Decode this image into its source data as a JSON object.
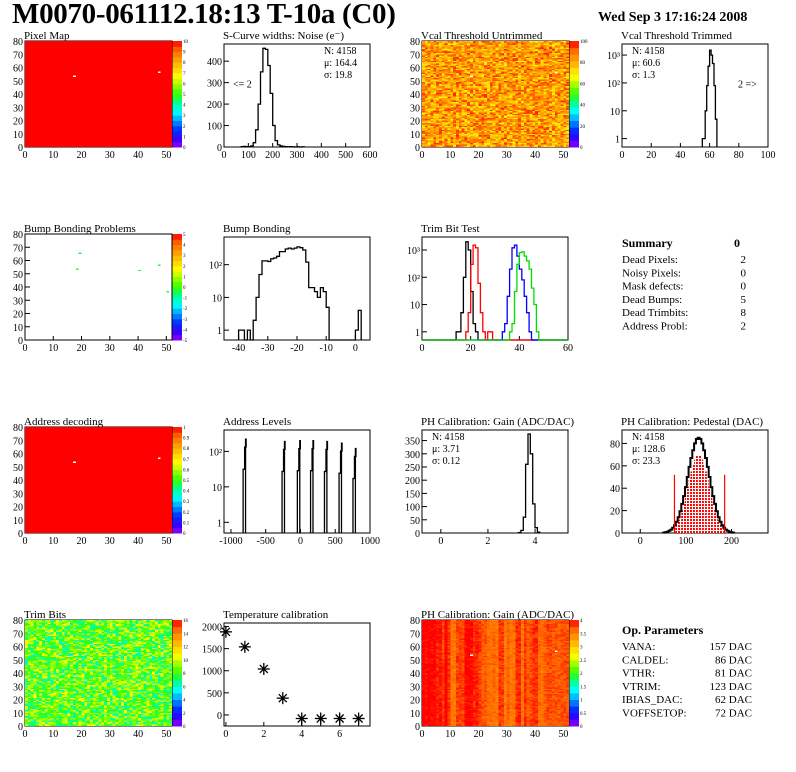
{
  "header": {
    "title": "M0070-061112.18:13 T-10a (C0)",
    "date": "Wed Sep  3 17:16:24 2008"
  },
  "palette": [
    "#9900ff",
    "#3300ff",
    "#0033ff",
    "#0099ff",
    "#00ffff",
    "#00ff99",
    "#33ff00",
    "#99ff00",
    "#ffff00",
    "#ffcc00",
    "#ff9900",
    "#ff6600",
    "#ff0000"
  ],
  "chart_data": [
    {
      "id": "pixel-map",
      "type": "heatmap",
      "title": "Pixel Map",
      "xlim": [
        0,
        52
      ],
      "ylim": [
        0,
        80
      ],
      "xticks": [
        "0",
        "10",
        "20",
        "30",
        "40",
        "50"
      ],
      "yticks": [
        "0",
        "10",
        "20",
        "30",
        "40",
        "50",
        "60",
        "70",
        "80"
      ],
      "zlim": [
        0,
        10
      ],
      "zticks": [
        "0",
        "1",
        "2",
        "3",
        "4",
        "5",
        "6",
        "7",
        "8",
        "9",
        "10"
      ],
      "uniform_value": 10,
      "empty_pixels": [
        [
          17,
          53
        ],
        [
          47,
          56
        ]
      ]
    },
    {
      "id": "s-curve-noise",
      "type": "bar",
      "title": "S-Curve widths: Noise (e⁻)",
      "xlim": [
        0,
        600
      ],
      "ylim": [
        0,
        480
      ],
      "log": false,
      "xticks": [
        "0",
        "100",
        "200",
        "300",
        "400",
        "500",
        "600"
      ],
      "yticks": [
        "0",
        "100",
        "200",
        "300",
        "400"
      ],
      "stats": [
        "N: 4158",
        "μ: 164.4",
        "σ: 19.8"
      ],
      "stats_position": "top-right",
      "annotation": "<= 2",
      "series": [
        {
          "color": "#000000",
          "bin_start": 70,
          "bin_width": 10,
          "values": [
            2,
            3,
            2,
            2,
            5,
            20,
            80,
            200,
            350,
            460,
            455,
            380,
            250,
            100,
            30,
            10,
            5,
            3,
            2,
            1,
            2,
            1,
            0,
            1,
            0,
            1
          ]
        }
      ]
    },
    {
      "id": "vcal-threshold-untrimmed",
      "type": "heatmap",
      "title": "Vcal Threshold Untrimmed",
      "xlim": [
        0,
        52
      ],
      "ylim": [
        0,
        80
      ],
      "xticks": [
        "0",
        "10",
        "20",
        "30",
        "40",
        "50"
      ],
      "yticks": [
        "0",
        "10",
        "20",
        "30",
        "40",
        "50",
        "60",
        "70",
        "80"
      ],
      "zlim": [
        0,
        115
      ],
      "zticks": [
        "0",
        "20",
        "40",
        "60",
        "80",
        "100"
      ],
      "z_typical": [
        78,
        112
      ],
      "empty_pixels": [
        [
          17,
          53
        ],
        [
          47,
          56
        ]
      ]
    },
    {
      "id": "vcal-threshold-trimmed",
      "type": "bar",
      "title": "Vcal Threshold Trimmed",
      "xlim": [
        0,
        100
      ],
      "ylim": [
        0.5,
        2500
      ],
      "log": true,
      "xticks": [
        "0",
        "20",
        "40",
        "60",
        "80",
        "100"
      ],
      "yticks": [
        "1",
        "10",
        "10²",
        "10³"
      ],
      "stats": [
        "N: 4158",
        "μ: 60.6",
        "σ:  1.3"
      ],
      "stats_position": "top-left",
      "annotation": "2 =>",
      "series": [
        {
          "color": "#000000",
          "bin_start": 55,
          "bin_width": 1,
          "values": [
            1,
            1,
            10,
            80,
            400,
            1500,
            1000,
            500,
            80,
            5
          ]
        }
      ]
    },
    {
      "id": "bump-bonding-problems",
      "type": "heatmap",
      "title": "Bump Bonding Problems",
      "xlim": [
        0,
        52
      ],
      "ylim": [
        0,
        80
      ],
      "xticks": [
        "0",
        "10",
        "20",
        "30",
        "40",
        "50"
      ],
      "yticks": [
        "0",
        "10",
        "20",
        "30",
        "40",
        "50",
        "60",
        "70",
        "80"
      ],
      "zlim": [
        -5,
        5
      ],
      "zticks": [
        "-5",
        "-4",
        "-3",
        "-2",
        "-1",
        "0",
        "1",
        "2",
        "3",
        "4",
        "5"
      ],
      "hit_pixels": [
        [
          19,
          65
        ],
        [
          18,
          53
        ],
        [
          40,
          52
        ],
        [
          47,
          56
        ],
        [
          50,
          36
        ]
      ]
    },
    {
      "id": "bump-bonding",
      "type": "bar",
      "title": "Bump Bonding",
      "xlim": [
        -45,
        5
      ],
      "ylim": [
        0.5,
        700
      ],
      "log": true,
      "xticks": [
        "-40",
        "-30",
        "-20",
        "-10",
        "0"
      ],
      "yticks": [
        "1",
        "10",
        "10²"
      ],
      "series": [
        {
          "color": "#000000",
          "bin_start": -40,
          "bin_width": 1,
          "values": [
            1,
            1,
            0,
            1,
            0,
            2,
            10,
            50,
            130,
            130,
            125,
            150,
            160,
            180,
            250,
            250,
            300,
            320,
            300,
            320,
            350,
            330,
            280,
            120,
            20,
            20,
            15,
            10,
            20,
            15,
            5,
            0,
            0,
            0,
            0,
            0,
            0,
            0,
            0,
            0,
            1,
            4
          ]
        }
      ]
    },
    {
      "id": "trim-bit-test",
      "type": "bar",
      "title": "Trim Bit Test",
      "xlim": [
        0,
        60
      ],
      "ylim": [
        0.5,
        3000
      ],
      "log": true,
      "xticks": [
        "0",
        "20",
        "40",
        "60"
      ],
      "yticks": [
        "1",
        "10",
        "10²",
        "10³"
      ],
      "series": [
        {
          "color": "#000000",
          "bin_start": 14,
          "bin_width": 1,
          "values": [
            1,
            1,
            5,
            100,
            2000,
            1000,
            30,
            2,
            1
          ]
        },
        {
          "color": "#ff0000",
          "bin_start": 18,
          "bin_width": 1,
          "values": [
            1,
            5,
            300,
            1500,
            1200,
            60,
            5,
            1,
            0,
            1,
            1
          ]
        },
        {
          "color": "#0000ff",
          "bin_start": 33,
          "bin_width": 1,
          "values": [
            1,
            2,
            20,
            200,
            1200,
            1500,
            600,
            200,
            80,
            20,
            5,
            1
          ]
        },
        {
          "color": "#00dd00",
          "bin_start": 36,
          "bin_width": 1,
          "values": [
            1,
            2,
            30,
            300,
            800,
            850,
            600,
            400,
            200,
            40,
            10,
            1
          ]
        }
      ]
    },
    {
      "id": "address-decoding",
      "type": "heatmap",
      "title": "Address decoding",
      "xlim": [
        0,
        52
      ],
      "ylim": [
        0,
        80
      ],
      "xticks": [
        "0",
        "10",
        "20",
        "30",
        "40",
        "50"
      ],
      "yticks": [
        "0",
        "10",
        "20",
        "30",
        "40",
        "50",
        "60",
        "70",
        "80"
      ],
      "zlim": [
        0,
        1
      ],
      "zticks": [
        "0",
        "0.1",
        "0.2",
        "0.3",
        "0.4",
        "0.5",
        "0.6",
        "0.7",
        "0.8",
        "0.9",
        "1"
      ],
      "uniform_value": 1,
      "empty_pixels": [
        [
          17,
          53
        ],
        [
          47,
          56
        ]
      ]
    },
    {
      "id": "address-levels",
      "type": "bar",
      "title": "Address Levels",
      "xlim": [
        -1100,
        1000
      ],
      "ylim": [
        0.5,
        400
      ],
      "log": true,
      "xticks": [
        "-1000",
        "-500",
        "0",
        "500",
        "1000"
      ],
      "yticks": [
        "1",
        "10",
        "10²"
      ],
      "peaks": [
        {
          "x": -800,
          "height": 220
        },
        {
          "x": -240,
          "height": 190
        },
        {
          "x": -20,
          "height": 200
        },
        {
          "x": 170,
          "height": 200
        },
        {
          "x": 370,
          "height": 190
        },
        {
          "x": 580,
          "height": 170
        },
        {
          "x": 780,
          "height": 120
        }
      ]
    },
    {
      "id": "ph-calibration-gain-hist",
      "type": "bar",
      "title": "PH Calibration: Gain (ADC/DAC)",
      "xlim": [
        -0.8,
        5.4
      ],
      "ylim": [
        0,
        390
      ],
      "log": false,
      "xticks": [
        "0",
        "2",
        "4"
      ],
      "yticks": [
        "0",
        "50",
        "100",
        "150",
        "200",
        "250",
        "300",
        "350"
      ],
      "stats": [
        "N: 4158",
        "μ: 3.71",
        "σ: 0.12"
      ],
      "stats_position": "top-left",
      "series": [
        {
          "color": "#000000",
          "bin_start": 3.3,
          "bin_width": 0.1,
          "values": [
            2,
            10,
            60,
            260,
            375,
            300,
            110,
            20,
            3
          ]
        }
      ]
    },
    {
      "id": "ph-calibration-pedestal",
      "type": "bar",
      "title": "PH Calibration: Pedestal (DAC)",
      "xlim": [
        -40,
        280
      ],
      "ylim": [
        0,
        92
      ],
      "log": false,
      "xticks": [
        "0",
        "100",
        "200"
      ],
      "yticks": [
        "0",
        "20",
        "40",
        "60",
        "80"
      ],
      "stats": [
        "N: 4158",
        "μ: 128.6",
        "σ: 23.3"
      ],
      "stats_colors": [
        "#000000",
        "#ff0000",
        "#ff0000"
      ],
      "stats_position": "top-left",
      "fit_range": [
        75,
        185
      ],
      "fit_color": "#ff0000",
      "series": [
        {
          "color": "#000000",
          "bin_start": 50,
          "bin_width": 4,
          "values": [
            0.4,
            0.7,
            1.2,
            2,
            3,
            4.7,
            7,
            10,
            14,
            19.5,
            26,
            33,
            41,
            50,
            59,
            67,
            74,
            80,
            84,
            85,
            84,
            80,
            74,
            67,
            59,
            50,
            41,
            33,
            26,
            19.5,
            14,
            10,
            7,
            4.7,
            3,
            2,
            1.2,
            0.7,
            0.4
          ]
        }
      ]
    },
    {
      "id": "trim-bits",
      "type": "heatmap",
      "title": "Trim Bits",
      "xlim": [
        0,
        52
      ],
      "ylim": [
        0,
        80
      ],
      "xticks": [
        "0",
        "10",
        "20",
        "30",
        "40",
        "50"
      ],
      "yticks": [
        "0",
        "10",
        "20",
        "30",
        "40",
        "50",
        "60",
        "70",
        "80"
      ],
      "zlim": [
        0,
        16
      ],
      "zticks": [
        "0",
        "2",
        "4",
        "6",
        "8",
        "10",
        "12",
        "14",
        "16"
      ],
      "z_typical": [
        6,
        11
      ]
    },
    {
      "id": "temperature-calibration",
      "type": "scatter",
      "title": "Temperature calibration",
      "xlim": [
        -0.1,
        7.6
      ],
      "ylim": [
        -250,
        2080
      ],
      "xticks": [
        "0",
        "2",
        "4",
        "6"
      ],
      "yticks": [
        "0",
        "500",
        "1000",
        "1500",
        "2000"
      ],
      "x": [
        0,
        1,
        2,
        3,
        4,
        5,
        6,
        7
      ],
      "y": [
        1880,
        1540,
        1040,
        380,
        -80,
        -80,
        -80,
        -80
      ]
    },
    {
      "id": "ph-calibration-gain-map",
      "type": "heatmap",
      "title": "PH Calibration: Gain (ADC/DAC)",
      "xlim": [
        0,
        52
      ],
      "ylim": [
        0,
        80
      ],
      "xticks": [
        "0",
        "10",
        "20",
        "30",
        "40",
        "50"
      ],
      "yticks": [
        "0",
        "10",
        "20",
        "30",
        "40",
        "50",
        "60",
        "70",
        "80"
      ],
      "zlim": [
        0,
        4
      ],
      "zticks": [
        "0",
        "0.5",
        "1",
        "1.5",
        "2",
        "2.5",
        "3",
        "3.5",
        "4"
      ],
      "z_typical": [
        3.4,
        4.0
      ],
      "empty_pixels": [
        [
          17,
          53
        ],
        [
          47,
          56
        ]
      ]
    }
  ],
  "summary": {
    "title": "Summary",
    "value": "0",
    "rows": [
      {
        "label": "Dead Pixels:",
        "value": "2"
      },
      {
        "label": "Noisy Pixels:",
        "value": "0"
      },
      {
        "label": "Mask defects:",
        "value": "0"
      },
      {
        "label": "Dead Bumps:",
        "value": "5"
      },
      {
        "label": "Dead Trimbits:",
        "value": "8"
      },
      {
        "label": "Address Probl:",
        "value": "2"
      }
    ]
  },
  "op_parameters": {
    "title": "Op. Parameters",
    "rows": [
      {
        "label": "VANA:",
        "value": "157 DAC"
      },
      {
        "label": "CALDEL:",
        "value": "86 DAC"
      },
      {
        "label": "VTHR:",
        "value": "81 DAC"
      },
      {
        "label": "VTRIM:",
        "value": "123 DAC"
      },
      {
        "label": "IBIAS_DAC:",
        "value": "62 DAC"
      },
      {
        "label": "VOFFSETOP:",
        "value": "72 DAC"
      }
    ]
  }
}
